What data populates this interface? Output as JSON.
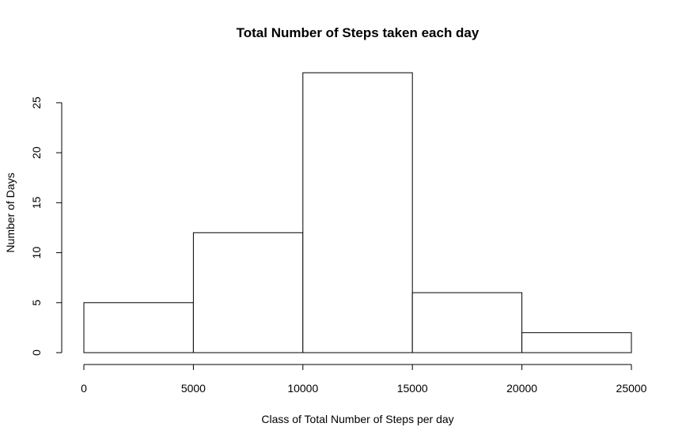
{
  "chart_data": {
    "type": "bar",
    "title": "Total Number of Steps taken each day",
    "xlabel": "Class of Total Number of Steps per day",
    "ylabel": "Number of Days",
    "bins": [
      {
        "start": 0,
        "end": 5000,
        "value": 5
      },
      {
        "start": 5000,
        "end": 10000,
        "value": 12
      },
      {
        "start": 10000,
        "end": 15000,
        "value": 28
      },
      {
        "start": 15000,
        "end": 20000,
        "value": 6
      },
      {
        "start": 20000,
        "end": 25000,
        "value": 2
      }
    ],
    "x_ticks": [
      0,
      5000,
      10000,
      15000,
      20000,
      25000
    ],
    "y_ticks": [
      0,
      5,
      10,
      15,
      20,
      25
    ],
    "xlim": [
      0,
      25000
    ],
    "ylim": [
      0,
      28
    ],
    "grid": false,
    "legend": "none",
    "colors": {
      "bar_fill": "#ffffff",
      "bar_stroke": "#000000",
      "axis": "#000000",
      "text": "#000000"
    }
  }
}
